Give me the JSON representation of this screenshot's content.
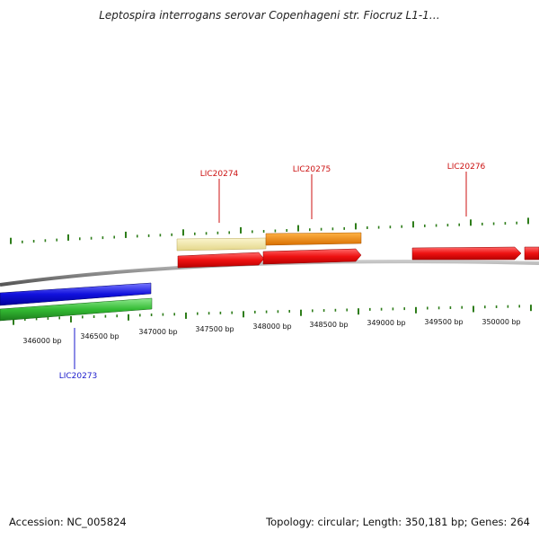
{
  "title": "Leptospira interrogans serovar Copenhageni str. Fiocruz L1-1…",
  "footer": {
    "accession": "Accession: NC_005824",
    "summary": "Topology: circular; Length: 350,181 bp; Genes: 264"
  },
  "map": {
    "tick_labels": [
      "346000 bp",
      "346500 bp",
      "347000 bp",
      "347500 bp",
      "348000 bp",
      "348500 bp",
      "349000 bp",
      "349500 bp",
      "350000 bp"
    ],
    "gene_labels": [
      {
        "text": "LIC20273",
        "color": "#1a1acc"
      },
      {
        "text": "LIC20274",
        "color": "#cc1111"
      },
      {
        "text": "LIC20275",
        "color": "#cc1111"
      },
      {
        "text": "LIC20276",
        "color": "#cc1111"
      }
    ],
    "colors": {
      "backbone": "#8c8c8c",
      "tick": "#2e7d1a",
      "forward_cds": "#ee1111",
      "reverse_cds": "#1111dd",
      "reverse_gene": "#33bb33",
      "pale_feature": "#eee4a0",
      "orange_feature": "#f28a00",
      "label_red": "#cc1111",
      "label_blue": "#1a1acc"
    }
  }
}
